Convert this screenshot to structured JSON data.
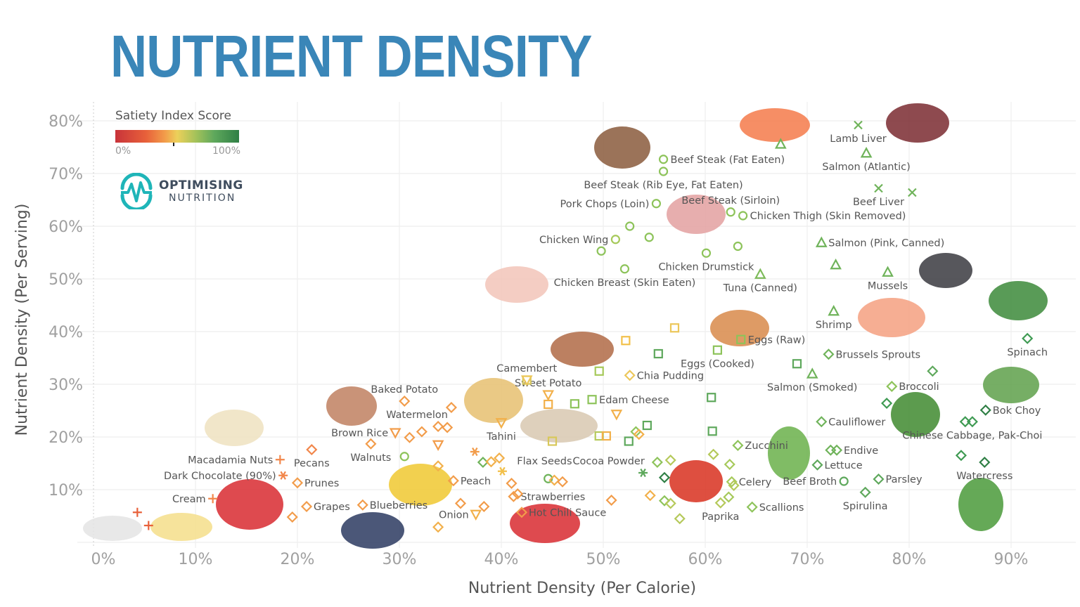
{
  "title": "NUTRIENT DENSITY",
  "legend": {
    "title": "Satiety Index Score",
    "min_label": "0%",
    "max_label": "100%",
    "gradient_colors": [
      "#c8333a",
      "#f29c4a",
      "#ecd05a",
      "#5ea85c",
      "#2f7f45"
    ]
  },
  "logo": {
    "line1": "OPTIMISING",
    "line2": "NUTRITION",
    "color": "#1fb5b8"
  },
  "chart_data": {
    "type": "scatter",
    "title": "NUTRIENT DENSITY",
    "xlabel": "Nutrient Density (Per Calorie)",
    "ylabel": "Nutrient Density (Per Serving)",
    "xlim": [
      0,
      97
    ],
    "ylim": [
      0,
      85
    ],
    "x_ticks": [
      "0%",
      "10%",
      "20%",
      "30%",
      "40%",
      "50%",
      "60%",
      "70%",
      "80%",
      "90%"
    ],
    "y_ticks": [
      "10%",
      "20%",
      "30%",
      "40%",
      "50%",
      "60%",
      "70%",
      "80%"
    ],
    "grid": true,
    "legend_placement": "top-left",
    "points": [
      {
        "label": "Beef Steak (Fat Eaten)",
        "x": 55.9,
        "y": 72.7,
        "shape": "circle",
        "color": "#8dc35a"
      },
      {
        "label": "Beef Steak (Rib Eye, Fat Eaten)",
        "x": 55.9,
        "y": 70.4,
        "shape": "circle",
        "color": "#8dc35a"
      },
      {
        "label": "Pork Chops (Loin)",
        "x": 55.2,
        "y": 64.3,
        "shape": "circle",
        "color": "#8dc35a"
      },
      {
        "label": "Beef Steak (Sirloin)",
        "x": 62.5,
        "y": 62.7,
        "shape": "circle",
        "color": "#8dc35a"
      },
      {
        "label": "Chicken Thigh (Skin Removed)",
        "x": 63.7,
        "y": 62.0,
        "shape": "circle",
        "color": "#8dc35a"
      },
      {
        "label": "Chicken Wing",
        "x": 51.2,
        "y": 57.5,
        "shape": "circle",
        "color": "#a6c95a"
      },
      {
        "label": "Chicken Drumstick",
        "x": 60.1,
        "y": 54.9,
        "shape": "circle",
        "color": "#8dc35a"
      },
      {
        "label": "Chicken Breast (Skin Eaten)",
        "x": 52.1,
        "y": 51.9,
        "shape": "circle",
        "color": "#8dc35a"
      },
      {
        "label": "Tuna (Canned)",
        "x": 65.4,
        "y": 50.9,
        "shape": "triangle",
        "color": "#7dbb5a"
      },
      {
        "label": "Lamb Liver",
        "x": 75.0,
        "y": 79.2,
        "shape": "x",
        "color": "#6fb35a"
      },
      {
        "label": "Salmon (Atlantic)",
        "x": 75.8,
        "y": 73.9,
        "shape": "triangle",
        "color": "#6fb35a"
      },
      {
        "label": "Beef Liver",
        "x": 77.0,
        "y": 67.2,
        "shape": "x",
        "color": "#6fb35a"
      },
      {
        "label": "Salmon (Pink, Canned)",
        "x": 71.4,
        "y": 56.9,
        "shape": "triangle",
        "color": "#6fb35a"
      },
      {
        "label": "Mussels",
        "x": 77.9,
        "y": 51.3,
        "shape": "triangle",
        "color": "#6fb35a"
      },
      {
        "label": "Shrimp",
        "x": 72.6,
        "y": 43.9,
        "shape": "triangle",
        "color": "#6fb35a"
      },
      {
        "label": "Brussels Sprouts",
        "x": 72.1,
        "y": 35.7,
        "shape": "diamond",
        "color": "#6fb35a"
      },
      {
        "label": "Salmon (Smoked)",
        "x": 70.5,
        "y": 32.0,
        "shape": "triangle",
        "color": "#6fb35a"
      },
      {
        "label": "Spinach",
        "x": 91.6,
        "y": 38.7,
        "shape": "diamond",
        "color": "#3e9a52"
      },
      {
        "label": "Broccoli",
        "x": 78.3,
        "y": 29.6,
        "shape": "diamond",
        "color": "#8dc35a"
      },
      {
        "label": "Cauliflower",
        "x": 71.4,
        "y": 22.9,
        "shape": "diamond",
        "color": "#6fb35a"
      },
      {
        "label": "Bok Choy",
        "x": 87.5,
        "y": 25.1,
        "shape": "diamond",
        "color": "#2f7f45"
      },
      {
        "label": "Chinese Cabbage, Pak-Choi",
        "x": 86.2,
        "y": 22.9,
        "shape": "diamond",
        "color": "#3e9a52"
      },
      {
        "label": "Endive",
        "x": 72.9,
        "y": 17.5,
        "shape": "diamond",
        "color": "#6fb35a"
      },
      {
        "label": "Lettuce",
        "x": 71.0,
        "y": 14.7,
        "shape": "diamond",
        "color": "#5ea85c"
      },
      {
        "label": "Beef Broth",
        "x": 73.6,
        "y": 11.6,
        "shape": "circle",
        "color": "#5ea85c"
      },
      {
        "label": "Parsley",
        "x": 77.0,
        "y": 12.0,
        "shape": "diamond",
        "color": "#5ea85c"
      },
      {
        "label": "Spirulina",
        "x": 75.7,
        "y": 9.5,
        "shape": "diamond",
        "color": "#5ea85c"
      },
      {
        "label": "Watercress",
        "x": 87.4,
        "y": 15.2,
        "shape": "diamond",
        "color": "#2f7f45"
      },
      {
        "label": "Scallions",
        "x": 64.6,
        "y": 6.7,
        "shape": "diamond",
        "color": "#8dc35a"
      },
      {
        "label": "Celery",
        "x": 62.6,
        "y": 11.5,
        "shape": "diamond",
        "color": "#a6c95a"
      },
      {
        "label": "Zucchini",
        "x": 63.2,
        "y": 18.4,
        "shape": "diamond",
        "color": "#8dc35a"
      },
      {
        "label": "Paprika",
        "x": 61.5,
        "y": 7.5,
        "shape": "diamond",
        "color": "#b5c95a"
      },
      {
        "label": "Eggs (Cooked)",
        "x": 61.2,
        "y": 36.5,
        "shape": "square",
        "color": "#8dc35a"
      },
      {
        "label": "Eggs (Raw)",
        "x": 63.5,
        "y": 38.5,
        "shape": "square",
        "color": "#8dc35a"
      },
      {
        "label": "Chia Pudding",
        "x": 52.6,
        "y": 31.7,
        "shape": "diamond",
        "color": "#ecc75a"
      },
      {
        "label": "Edam Cheese",
        "x": 48.9,
        "y": 27.1,
        "shape": "square",
        "color": "#8dc35a"
      },
      {
        "label": "Sweet Potato",
        "x": 44.6,
        "y": 28.0,
        "shape": "triangle-down",
        "color": "#f2b04a"
      },
      {
        "label": "Camembert",
        "x": 42.5,
        "y": 30.8,
        "shape": "square",
        "color": "#d8c85a"
      },
      {
        "label": "Baked Potato",
        "x": 30.5,
        "y": 26.8,
        "shape": "diamond",
        "color": "#f29c4a"
      },
      {
        "label": "Watermelon",
        "x": 35.1,
        "y": 25.6,
        "shape": "diamond",
        "color": "#f29c4a"
      },
      {
        "label": "Brown Rice",
        "x": 29.6,
        "y": 20.8,
        "shape": "triangle-down",
        "color": "#f29c4a"
      },
      {
        "label": "Walnuts",
        "x": 27.2,
        "y": 18.7,
        "shape": "diamond",
        "color": "#f29c4a"
      },
      {
        "label": "Tahini",
        "x": 40.0,
        "y": 22.7,
        "shape": "triangle-down",
        "color": "#f2b04a"
      },
      {
        "label": "Flax Seeds",
        "x": 37.4,
        "y": 17.2,
        "shape": "asterisk",
        "color": "#f29c4a"
      },
      {
        "label": "Cocoa Powder",
        "x": 40.1,
        "y": 13.5,
        "shape": "asterisk",
        "color": "#f2c04a"
      },
      {
        "label": "Peach",
        "x": 35.3,
        "y": 11.7,
        "shape": "diamond",
        "color": "#f29c4a"
      },
      {
        "label": "Strawberries",
        "x": 41.2,
        "y": 8.7,
        "shape": "diamond",
        "color": "#f29c4a"
      },
      {
        "label": "Hot Chili Sauce",
        "x": 42.0,
        "y": 5.7,
        "shape": "diamond",
        "color": "#f29c4a"
      },
      {
        "label": "Onion",
        "x": 37.5,
        "y": 5.3,
        "shape": "triangle-down",
        "color": "#f2b04a"
      },
      {
        "label": "Blueberries",
        "x": 26.4,
        "y": 7.1,
        "shape": "diamond",
        "color": "#f29c4a"
      },
      {
        "label": "Grapes",
        "x": 20.9,
        "y": 6.8,
        "shape": "diamond",
        "color": "#f29c4a"
      },
      {
        "label": "Prunes",
        "x": 20.0,
        "y": 11.3,
        "shape": "diamond",
        "color": "#f29c4a"
      },
      {
        "label": "Pecans",
        "x": 21.4,
        "y": 17.6,
        "shape": "diamond",
        "color": "#f2864a"
      },
      {
        "label": "Macadamia Nuts",
        "x": 18.3,
        "y": 15.7,
        "shape": "plus",
        "color": "#f2864a"
      },
      {
        "label": "Dark Chocolate (90%)",
        "x": 18.6,
        "y": 12.7,
        "shape": "asterisk",
        "color": "#f2864a"
      },
      {
        "label": "Cream",
        "x": 11.7,
        "y": 8.3,
        "shape": "plus",
        "color": "#f2864a"
      },
      {
        "label": "",
        "x": 4.3,
        "y": 5.7,
        "shape": "plus",
        "color": "#e8613a"
      },
      {
        "label": "",
        "x": 5.4,
        "y": 3.2,
        "shape": "plus",
        "color": "#e8613a"
      },
      {
        "label": "",
        "x": 19.5,
        "y": 4.8,
        "shape": "diamond",
        "color": "#f29c4a"
      },
      {
        "label": "",
        "x": 30.5,
        "y": 16.3,
        "shape": "circle",
        "color": "#8dc35a"
      },
      {
        "label": "",
        "x": 31.0,
        "y": 19.9,
        "shape": "diamond",
        "color": "#f29c4a"
      },
      {
        "label": "",
        "x": 32.2,
        "y": 21.0,
        "shape": "diamond",
        "color": "#f29c4a"
      },
      {
        "label": "",
        "x": 33.8,
        "y": 22.0,
        "shape": "diamond",
        "color": "#f29c4a"
      },
      {
        "label": "",
        "x": 34.7,
        "y": 21.8,
        "shape": "diamond",
        "color": "#f29c4a"
      },
      {
        "label": "",
        "x": 33.8,
        "y": 18.5,
        "shape": "triangle-down",
        "color": "#f29c4a"
      },
      {
        "label": "",
        "x": 33.8,
        "y": 14.5,
        "shape": "diamond",
        "color": "#f2b04a"
      },
      {
        "label": "",
        "x": 38.2,
        "y": 15.2,
        "shape": "diamond",
        "color": "#6fb35a"
      },
      {
        "label": "",
        "x": 39.0,
        "y": 15.3,
        "shape": "diamond",
        "color": "#f2b04a"
      },
      {
        "label": "",
        "x": 39.8,
        "y": 16.0,
        "shape": "diamond",
        "color": "#f2b04a"
      },
      {
        "label": "",
        "x": 38.3,
        "y": 6.8,
        "shape": "diamond",
        "color": "#f29c4a"
      },
      {
        "label": "",
        "x": 36.0,
        "y": 7.4,
        "shape": "diamond",
        "color": "#f29c4a"
      },
      {
        "label": "",
        "x": 33.8,
        "y": 2.9,
        "shape": "diamond",
        "color": "#f2b04a"
      },
      {
        "label": "",
        "x": 41.0,
        "y": 11.2,
        "shape": "diamond",
        "color": "#f29c4a"
      },
      {
        "label": "",
        "x": 41.6,
        "y": 9.2,
        "shape": "diamond",
        "color": "#f29c4a"
      },
      {
        "label": "",
        "x": 44.6,
        "y": 12.1,
        "shape": "circle",
        "color": "#6fb35a"
      },
      {
        "label": "",
        "x": 45.2,
        "y": 11.8,
        "shape": "diamond",
        "color": "#f2b04a"
      },
      {
        "label": "",
        "x": 46.0,
        "y": 11.5,
        "shape": "diamond",
        "color": "#f29c4a"
      },
      {
        "label": "",
        "x": 50.8,
        "y": 8.0,
        "shape": "diamond",
        "color": "#f29c4a"
      },
      {
        "label": "",
        "x": 42.5,
        "y": 30.8,
        "shape": "triangle-down",
        "color": "#ecc75a"
      },
      {
        "label": "",
        "x": 44.6,
        "y": 26.2,
        "shape": "square",
        "color": "#f2b04a"
      },
      {
        "label": "",
        "x": 47.2,
        "y": 26.3,
        "shape": "square",
        "color": "#8dc35a"
      },
      {
        "label": "",
        "x": 49.6,
        "y": 32.5,
        "shape": "square",
        "color": "#a6c95a"
      },
      {
        "label": "",
        "x": 52.2,
        "y": 38.3,
        "shape": "square",
        "color": "#f2c04a"
      },
      {
        "label": "",
        "x": 57.0,
        "y": 40.7,
        "shape": "square",
        "color": "#ecc75a"
      },
      {
        "label": "",
        "x": 55.4,
        "y": 35.8,
        "shape": "square",
        "color": "#5ea85c"
      },
      {
        "label": "",
        "x": 51.3,
        "y": 24.3,
        "shape": "triangle-down",
        "color": "#f2b04a"
      },
      {
        "label": "",
        "x": 54.3,
        "y": 22.2,
        "shape": "square",
        "color": "#5ea85c"
      },
      {
        "label": "",
        "x": 52.5,
        "y": 19.2,
        "shape": "square",
        "color": "#5ea85c"
      },
      {
        "label": "",
        "x": 49.6,
        "y": 20.2,
        "shape": "square",
        "color": "#b5c95a"
      },
      {
        "label": "",
        "x": 50.3,
        "y": 20.2,
        "shape": "square",
        "color": "#f2b04a"
      },
      {
        "label": "",
        "x": 45.0,
        "y": 19.2,
        "shape": "square",
        "color": "#d8c85a"
      },
      {
        "label": "",
        "x": 53.2,
        "y": 21.0,
        "shape": "diamond",
        "color": "#8dc35a"
      },
      {
        "label": "",
        "x": 53.5,
        "y": 20.5,
        "shape": "diamond",
        "color": "#f2b04a"
      },
      {
        "label": "",
        "x": 53.9,
        "y": 13.2,
        "shape": "asterisk",
        "color": "#5ea85c"
      },
      {
        "label": "",
        "x": 55.3,
        "y": 15.2,
        "shape": "diamond",
        "color": "#8dc35a"
      },
      {
        "label": "",
        "x": 56.6,
        "y": 15.6,
        "shape": "diamond",
        "color": "#b5c95a"
      },
      {
        "label": "",
        "x": 56.0,
        "y": 12.3,
        "shape": "diamond",
        "color": "#2f7f45"
      },
      {
        "label": "",
        "x": 54.6,
        "y": 8.9,
        "shape": "diamond",
        "color": "#f2b04a"
      },
      {
        "label": "",
        "x": 56.0,
        "y": 7.9,
        "shape": "diamond",
        "color": "#8dc35a"
      },
      {
        "label": "",
        "x": 56.6,
        "y": 7.4,
        "shape": "diamond",
        "color": "#b5c95a"
      },
      {
        "label": "",
        "x": 57.5,
        "y": 4.5,
        "shape": "diamond",
        "color": "#b5c95a"
      },
      {
        "label": "",
        "x": 60.6,
        "y": 27.5,
        "shape": "square",
        "color": "#5ea85c"
      },
      {
        "label": "",
        "x": 60.7,
        "y": 21.1,
        "shape": "square",
        "color": "#5ea85c"
      },
      {
        "label": "",
        "x": 60.8,
        "y": 16.7,
        "shape": "diamond",
        "color": "#b5c95a"
      },
      {
        "label": "",
        "x": 62.4,
        "y": 14.8,
        "shape": "diamond",
        "color": "#a6c95a"
      },
      {
        "label": "",
        "x": 62.8,
        "y": 10.8,
        "shape": "diamond",
        "color": "#b5c95a"
      },
      {
        "label": "",
        "x": 62.3,
        "y": 8.6,
        "shape": "diamond",
        "color": "#a6c95a"
      },
      {
        "label": "",
        "x": 69.0,
        "y": 33.9,
        "shape": "square",
        "color": "#5ea85c"
      },
      {
        "label": "",
        "x": 67.4,
        "y": 75.6,
        "shape": "triangle",
        "color": "#6fb35a"
      },
      {
        "label": "",
        "x": 80.3,
        "y": 66.4,
        "shape": "x",
        "color": "#6fb35a"
      },
      {
        "label": "",
        "x": 72.8,
        "y": 52.7,
        "shape": "triangle",
        "color": "#6fb35a"
      },
      {
        "label": "",
        "x": 52.6,
        "y": 60.0,
        "shape": "circle",
        "color": "#8dc35a"
      },
      {
        "label": "",
        "x": 54.5,
        "y": 57.9,
        "shape": "circle",
        "color": "#8dc35a"
      },
      {
        "label": "",
        "x": 49.8,
        "y": 55.3,
        "shape": "circle",
        "color": "#8dc35a"
      },
      {
        "label": "",
        "x": 63.2,
        "y": 56.2,
        "shape": "circle",
        "color": "#8dc35a"
      },
      {
        "label": "",
        "x": 82.3,
        "y": 32.5,
        "shape": "diamond",
        "color": "#5ea85c"
      },
      {
        "label": "",
        "x": 77.8,
        "y": 26.4,
        "shape": "diamond",
        "color": "#3e9a52"
      },
      {
        "label": "",
        "x": 85.5,
        "y": 22.9,
        "shape": "diamond",
        "color": "#3e9a52"
      },
      {
        "label": "",
        "x": 85.1,
        "y": 16.5,
        "shape": "diamond",
        "color": "#3e9a52"
      },
      {
        "label": "",
        "x": 72.3,
        "y": 17.5,
        "shape": "diamond",
        "color": "#6fb35a"
      }
    ]
  }
}
